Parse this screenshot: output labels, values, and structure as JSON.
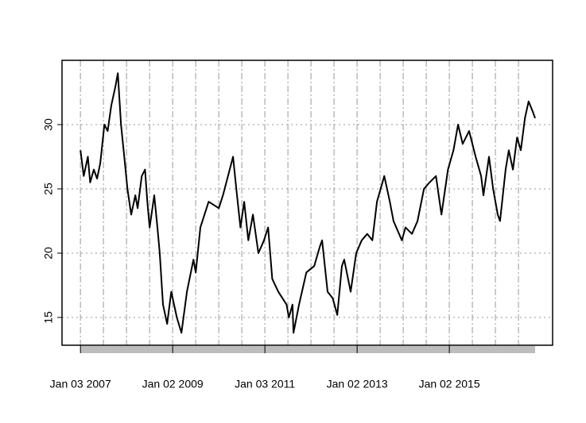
{
  "chart_data": {
    "type": "line",
    "x": [
      2007.0,
      2007.07,
      2007.16,
      2007.21,
      2007.29,
      2007.36,
      2007.43,
      2007.52,
      2007.59,
      2007.67,
      2007.76,
      2007.81,
      2007.88,
      2007.95,
      2008.02,
      2008.1,
      2008.19,
      2008.24,
      2008.33,
      2008.4,
      2008.45,
      2008.5,
      2008.6,
      2008.67,
      2008.72,
      2008.79,
      2008.88,
      2008.97,
      2009.09,
      2009.19,
      2009.31,
      2009.45,
      2009.5,
      2009.6,
      2009.78,
      2010.0,
      2010.09,
      2010.31,
      2010.38,
      2010.47,
      2010.55,
      2010.64,
      2010.74,
      2010.86,
      2010.98,
      2011.07,
      2011.16,
      2011.29,
      2011.47,
      2011.52,
      2011.6,
      2011.62,
      2011.74,
      2011.9,
      2012.07,
      2012.19,
      2012.24,
      2012.36,
      2012.47,
      2012.57,
      2012.67,
      2012.72,
      2012.86,
      2012.98,
      2013.1,
      2013.22,
      2013.33,
      2013.43,
      2013.59,
      2013.71,
      2013.79,
      2013.97,
      2014.05,
      2014.19,
      2014.31,
      2014.45,
      2014.57,
      2014.71,
      2014.83,
      2014.97,
      2015.09,
      2015.19,
      2015.29,
      2015.43,
      2015.57,
      2015.69,
      2015.74,
      2015.86,
      2015.95,
      2016.05,
      2016.1,
      2016.22,
      2016.29,
      2016.38,
      2016.47,
      2016.55,
      2016.64,
      2016.72,
      2016.81,
      2016.86
    ],
    "series": [
      {
        "color": "#000000",
        "values": [
          28,
          26,
          27.5,
          25.5,
          26.5,
          25.8,
          27,
          30,
          29.5,
          31.5,
          33,
          34,
          30,
          27.5,
          25,
          23,
          24.5,
          23.5,
          26,
          26.5,
          24,
          22,
          24.5,
          22,
          20,
          16,
          14.5,
          17,
          15,
          13.8,
          17,
          19.5,
          18.5,
          22,
          24,
          23.5,
          24.5,
          27.5,
          25,
          22,
          24,
          21,
          23,
          20,
          21,
          22,
          18,
          17,
          16,
          15,
          16,
          13.8,
          16,
          18.5,
          19,
          20.5,
          21,
          17,
          16.5,
          15.2,
          19,
          19.5,
          17,
          20,
          21,
          21.5,
          21,
          24,
          26,
          24,
          22.5,
          21,
          22,
          21.5,
          22.5,
          25,
          25.5,
          26,
          23,
          26.5,
          28,
          30,
          28.5,
          29.5,
          27.5,
          26,
          24.5,
          27.5,
          25,
          23,
          22.5,
          26.5,
          28,
          26.5,
          29,
          28,
          30.5,
          31.8,
          31,
          30.5
        ]
      }
    ],
    "xlim": [
      2006.6,
      2017.24
    ],
    "ylim": [
      12.84,
      35
    ],
    "xticks": [
      {
        "value": 2007,
        "label": "Jan 03 2007"
      },
      {
        "value": 2009,
        "label": "Jan 02 2009"
      },
      {
        "value": 2011,
        "label": "Jan 03 2011"
      },
      {
        "value": 2013,
        "label": "Jan 02 2013"
      },
      {
        "value": 2015,
        "label": "Jan 02 2015"
      }
    ],
    "x_minor_ticks": [
      2007,
      2007.5,
      2008,
      2008.5,
      2009,
      2009.5,
      2010,
      2010.5,
      2011,
      2011.5,
      2012,
      2012.5,
      2013,
      2013.5,
      2014,
      2014.5,
      2015,
      2015.5,
      2016,
      2016.5
    ],
    "yticks": [
      15,
      20,
      25,
      30
    ],
    "grid": true
  }
}
